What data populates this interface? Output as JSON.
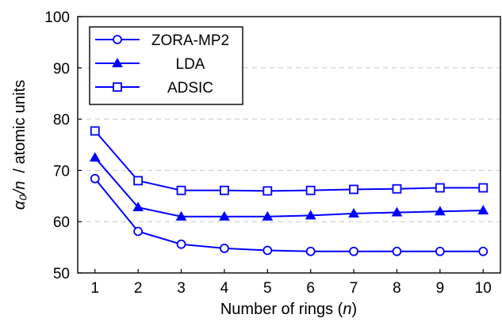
{
  "chart_data": {
    "type": "line",
    "x": [
      1,
      2,
      3,
      4,
      5,
      6,
      7,
      8,
      9,
      10
    ],
    "series": [
      {
        "name": "ZORA-MP2",
        "marker": "circle",
        "values": [
          68.4,
          58.1,
          55.6,
          54.8,
          54.4,
          54.2,
          54.2,
          54.2,
          54.2,
          54.2
        ]
      },
      {
        "name": "LDA",
        "marker": "triangle",
        "values": [
          72.5,
          62.8,
          61.0,
          61.0,
          61.0,
          61.2,
          61.6,
          61.8,
          62.0,
          62.2
        ]
      },
      {
        "name": "ADSIC",
        "marker": "square",
        "values": [
          77.7,
          68.0,
          66.1,
          66.1,
          66.0,
          66.1,
          66.3,
          66.4,
          66.6,
          66.6
        ]
      }
    ],
    "xlabel_text": "Number of rings (",
    "xlabel_var": "n",
    "xlabel_end": ")",
    "ylabel_var": "α₀/n",
    "ylabel_unit": "/ atomic units",
    "xlim": [
      0.6,
      10.4
    ],
    "ylim": [
      50,
      100
    ],
    "xticks": [
      "1",
      "2",
      "3",
      "4",
      "5",
      "6",
      "7",
      "8",
      "9",
      "10"
    ],
    "yticks": [
      "50",
      "60",
      "70",
      "80",
      "90",
      "100"
    ],
    "grid": "horizontal-dashed",
    "legend_position": "top-left",
    "line_color": "#0000ff"
  }
}
